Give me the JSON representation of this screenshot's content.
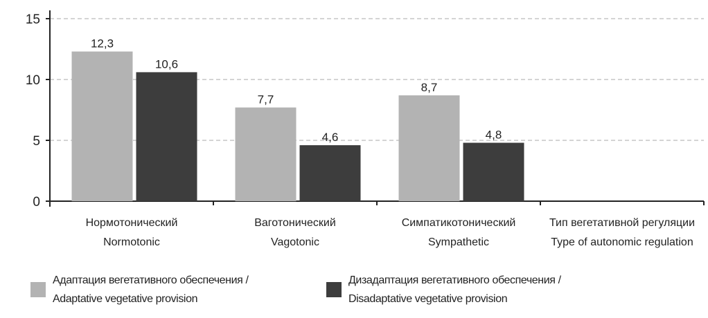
{
  "chart_data": {
    "type": "bar",
    "categories": [
      {
        "ru": "Нормотонический",
        "en": "Normotonic"
      },
      {
        "ru": "Ваготонический",
        "en": "Vagotonic"
      },
      {
        "ru": "Симпатикотонический",
        "en": "Sympathetic"
      }
    ],
    "axis_title": {
      "ru": "Тип вегетативной регуляции",
      "en": "Type of autonomic regulation"
    },
    "series": [
      {
        "name": "Адаптация вегетативного обеспечения / Adaptative vegetative provision",
        "name_line1": "Адаптация вегетативного обеспечения /",
        "name_line2": "Adaptative vegetative provision",
        "color": "#b3b3b3",
        "values": [
          12.3,
          7.7,
          8.7
        ],
        "labels": [
          "12,3",
          "7,7",
          "8,7"
        ]
      },
      {
        "name": "Дизадаптация вегетативного обеспечения / Disadaptative vegetative provision",
        "name_line1": "Дизадаптация вегетативного обеспечения /",
        "name_line2": "Disadaptative vegetative provision",
        "color": "#3d3d3d",
        "values": [
          10.6,
          4.6,
          4.8
        ],
        "labels": [
          "10,6",
          "4,6",
          "4,8"
        ]
      }
    ],
    "ylim": [
      0,
      15
    ],
    "yticks": [
      0,
      5,
      10,
      15
    ],
    "grid": true,
    "legend_position": "bottom"
  }
}
